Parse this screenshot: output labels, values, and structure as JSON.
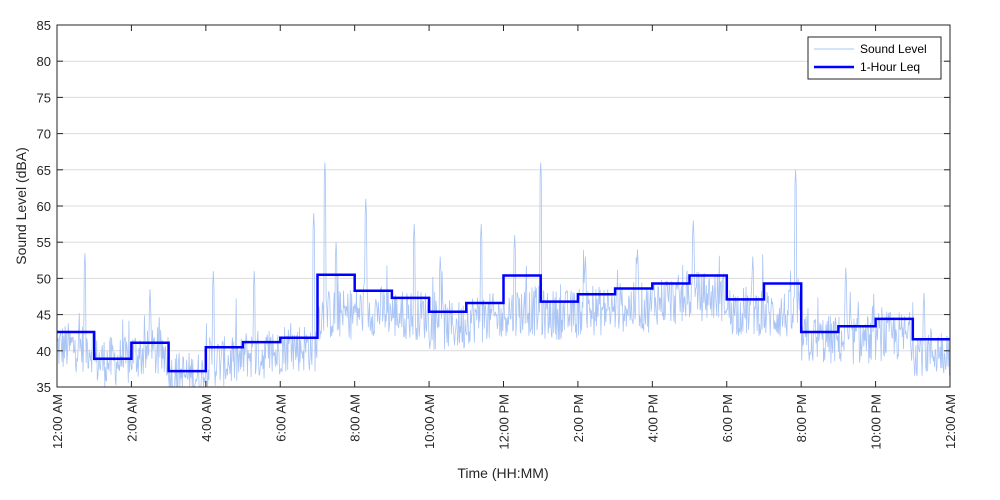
{
  "chart_data": {
    "type": "line",
    "title": "",
    "xlabel": "Time (HH:MM)",
    "ylabel": "Sound Level (dBA)",
    "ylim": [
      35,
      85
    ],
    "y_ticks": [
      35,
      40,
      45,
      50,
      55,
      60,
      65,
      70,
      75,
      80,
      85
    ],
    "xlim_hours": [
      0,
      24
    ],
    "x_tick_hours": [
      0,
      2,
      4,
      6,
      8,
      10,
      12,
      14,
      16,
      18,
      20,
      22,
      24
    ],
    "x_tick_labels": [
      "12:00 AM",
      "2:00 AM",
      "4:00 AM",
      "6:00 AM",
      "8:00 AM",
      "10:00 AM",
      "12:00 PM",
      "2:00 PM",
      "4:00 PM",
      "6:00 PM",
      "8:00 PM",
      "10:00 PM",
      "12:00 AM"
    ],
    "grid": "horizontal",
    "legend_position": "top-right",
    "colors": {
      "sound_level": "#a9c4f5",
      "leq": "#0000ff",
      "grid": "#dcdcdc",
      "axis": "#262626"
    },
    "series": [
      {
        "name": "Sound Level",
        "style": "thin",
        "hourly_mean": [
          40.5,
          38.5,
          39.5,
          36.5,
          38.5,
          39.5,
          40.5,
          45.0,
          45.5,
          45.0,
          43.5,
          44.5,
          45.5,
          45.0,
          45.5,
          46.0,
          47.0,
          47.5,
          45.5,
          45.0,
          41.5,
          41.5,
          42.0,
          40.0
        ],
        "peaks": [
          {
            "hour": 0.75,
            "value": 53.5
          },
          {
            "hour": 2.5,
            "value": 48.5
          },
          {
            "hour": 4.2,
            "value": 51
          },
          {
            "hour": 5.3,
            "value": 51
          },
          {
            "hour": 6.9,
            "value": 59
          },
          {
            "hour": 7.2,
            "value": 66
          },
          {
            "hour": 7.5,
            "value": 55
          },
          {
            "hour": 8.3,
            "value": 61
          },
          {
            "hour": 9.6,
            "value": 57.5
          },
          {
            "hour": 10.3,
            "value": 53
          },
          {
            "hour": 11.4,
            "value": 57.5
          },
          {
            "hour": 12.3,
            "value": 56
          },
          {
            "hour": 13.0,
            "value": 66
          },
          {
            "hour": 14.2,
            "value": 53
          },
          {
            "hour": 15.6,
            "value": 54
          },
          {
            "hour": 17.1,
            "value": 58
          },
          {
            "hour": 18.7,
            "value": 53
          },
          {
            "hour": 19.85,
            "value": 65
          },
          {
            "hour": 21.2,
            "value": 51.5
          },
          {
            "hour": 23.3,
            "value": 48
          }
        ]
      },
      {
        "name": "1-Hour Leq",
        "style": "step",
        "values": [
          42.6,
          38.9,
          41.1,
          37.2,
          40.5,
          41.2,
          41.8,
          50.5,
          48.3,
          47.3,
          45.4,
          46.6,
          50.4,
          46.8,
          47.8,
          48.6,
          49.3,
          50.4,
          47.1,
          49.3,
          42.6,
          43.4,
          44.4,
          41.6
        ]
      }
    ]
  }
}
